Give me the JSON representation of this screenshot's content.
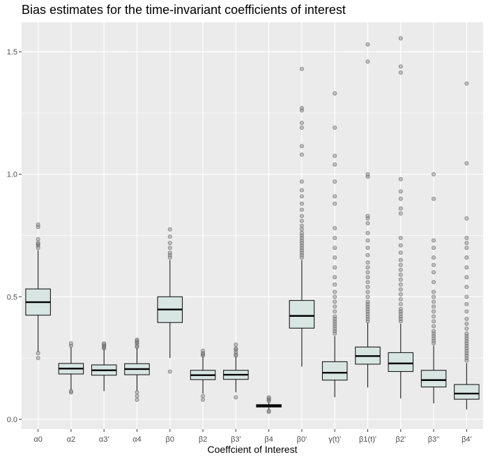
{
  "chart_data": {
    "type": "boxplot",
    "title": "Bias estimates for the time-invariant coefficients of interest",
    "xlabel": "Coeffcient of Interest",
    "ylabel": "",
    "ylim": [
      -0.04,
      1.62
    ],
    "y_ticks": [
      0.0,
      0.5,
      1.0,
      1.5
    ],
    "y_tick_labels": [
      "0.0",
      "0.5",
      "1.0",
      "1.5"
    ],
    "grid": true,
    "colors": {
      "panel": "#ebebeb",
      "grid": "#ffffff",
      "box_fill": "#d8e6e3",
      "box_stroke": "#1a1a1a",
      "outlier": "#8c8c8c"
    },
    "categories": [
      "α0",
      "α2",
      "α3'",
      "α4",
      "β0",
      "β2",
      "β3'",
      "β4",
      "β0'",
      "γ(t)'",
      "β1(t)'",
      "β2'",
      "β3''",
      "β4'"
    ],
    "boxes": [
      {
        "category": "α0",
        "whisker_low": 0.275,
        "q1": 0.425,
        "median": 0.478,
        "q3": 0.532,
        "whisker_high": 0.69,
        "outliers": [
          0.25,
          0.27,
          0.7,
          0.71,
          0.715,
          0.72,
          0.735,
          0.785,
          0.795
        ]
      },
      {
        "category": "α2",
        "whisker_low": 0.12,
        "q1": 0.185,
        "median": 0.207,
        "q3": 0.228,
        "whisker_high": 0.295,
        "outliers": [
          0.11,
          0.115,
          0.3,
          0.31
        ]
      },
      {
        "category": "α3'",
        "whisker_low": 0.115,
        "q1": 0.18,
        "median": 0.2,
        "q3": 0.222,
        "whisker_high": 0.287,
        "outliers": [
          0.29,
          0.295,
          0.3,
          0.305,
          0.31
        ]
      },
      {
        "category": "α4",
        "whisker_low": 0.115,
        "q1": 0.182,
        "median": 0.205,
        "q3": 0.227,
        "whisker_high": 0.29,
        "outliers": [
          0.08,
          0.095,
          0.11,
          0.295,
          0.3,
          0.31,
          0.315,
          0.32,
          0.325
        ]
      },
      {
        "category": "β0",
        "whisker_low": 0.25,
        "q1": 0.395,
        "median": 0.448,
        "q3": 0.5,
        "whisker_high": 0.65,
        "outliers": [
          0.195,
          0.66,
          0.67,
          0.68,
          0.7,
          0.72,
          0.745,
          0.775
        ]
      },
      {
        "category": "β2",
        "whisker_low": 0.105,
        "q1": 0.162,
        "median": 0.18,
        "q3": 0.2,
        "whisker_high": 0.255,
        "outliers": [
          0.08,
          0.095,
          0.26,
          0.265,
          0.27,
          0.28
        ]
      },
      {
        "category": "β3'",
        "whisker_low": 0.11,
        "q1": 0.163,
        "median": 0.182,
        "q3": 0.2,
        "whisker_high": 0.255,
        "outliers": [
          0.09,
          0.26,
          0.265,
          0.275,
          0.285,
          0.29,
          0.305
        ]
      },
      {
        "category": "β4",
        "whisker_low": 0.04,
        "q1": 0.05,
        "median": 0.055,
        "q3": 0.06,
        "whisker_high": 0.07,
        "outliers": [
          0.03,
          0.035,
          0.075,
          0.08,
          0.085,
          0.09
        ]
      },
      {
        "category": "β0'",
        "whisker_low": 0.215,
        "q1": 0.372,
        "median": 0.422,
        "q3": 0.485,
        "whisker_high": 0.65,
        "outliers": [
          0.66,
          0.67,
          0.68,
          0.69,
          0.7,
          0.71,
          0.72,
          0.73,
          0.74,
          0.75,
          0.76,
          0.775,
          0.79,
          0.81,
          0.83,
          0.855,
          0.88,
          0.91,
          0.935,
          0.97,
          1.08,
          1.115,
          1.19,
          1.21,
          1.26,
          1.27,
          1.43
        ]
      },
      {
        "category": "γ(t)'",
        "whisker_low": 0.09,
        "q1": 0.16,
        "median": 0.19,
        "q3": 0.235,
        "whisker_high": 0.34,
        "outliers": [
          0.35,
          0.36,
          0.37,
          0.38,
          0.39,
          0.4,
          0.41,
          0.42,
          0.44,
          0.46,
          0.48,
          0.5,
          0.52,
          0.55,
          0.58,
          0.62,
          0.66,
          0.7,
          0.74,
          0.78,
          0.88,
          0.91,
          0.97,
          1.04,
          1.075,
          1.19,
          1.33
        ]
      },
      {
        "category": "β1(t)'",
        "whisker_low": 0.13,
        "q1": 0.225,
        "median": 0.258,
        "q3": 0.295,
        "whisker_high": 0.395,
        "outliers": [
          0.4,
          0.41,
          0.42,
          0.43,
          0.44,
          0.45,
          0.46,
          0.47,
          0.48,
          0.5,
          0.52,
          0.54,
          0.56,
          0.58,
          0.6,
          0.62,
          0.64,
          0.67,
          0.7,
          0.73,
          0.76,
          0.8,
          0.82,
          0.83,
          0.99,
          1.0,
          1.46,
          1.53
        ]
      },
      {
        "category": "β2'",
        "whisker_low": 0.085,
        "q1": 0.195,
        "median": 0.228,
        "q3": 0.272,
        "whisker_high": 0.39,
        "outliers": [
          0.4,
          0.41,
          0.42,
          0.43,
          0.44,
          0.45,
          0.47,
          0.49,
          0.51,
          0.53,
          0.55,
          0.57,
          0.59,
          0.61,
          0.63,
          0.65,
          0.68,
          0.71,
          0.74,
          0.84,
          0.86,
          0.9,
          0.93,
          0.98,
          1.415,
          1.44,
          1.555
        ]
      },
      {
        "category": "β3''",
        "whisker_low": 0.065,
        "q1": 0.132,
        "median": 0.16,
        "q3": 0.2,
        "whisker_high": 0.3,
        "outliers": [
          0.31,
          0.32,
          0.33,
          0.34,
          0.35,
          0.36,
          0.38,
          0.4,
          0.42,
          0.44,
          0.46,
          0.48,
          0.5,
          0.52,
          0.56,
          0.6,
          0.63,
          0.66,
          0.7,
          0.73,
          0.9,
          1.0
        ]
      },
      {
        "category": "β4'",
        "whisker_low": 0.04,
        "q1": 0.082,
        "median": 0.105,
        "q3": 0.142,
        "whisker_high": 0.23,
        "outliers": [
          0.24,
          0.25,
          0.26,
          0.27,
          0.28,
          0.29,
          0.3,
          0.31,
          0.32,
          0.33,
          0.34,
          0.35,
          0.37,
          0.39,
          0.41,
          0.44,
          0.47,
          0.5,
          0.54,
          0.58,
          0.62,
          0.66,
          0.7,
          0.72,
          0.74,
          0.82,
          1.045,
          1.37
        ]
      }
    ]
  }
}
